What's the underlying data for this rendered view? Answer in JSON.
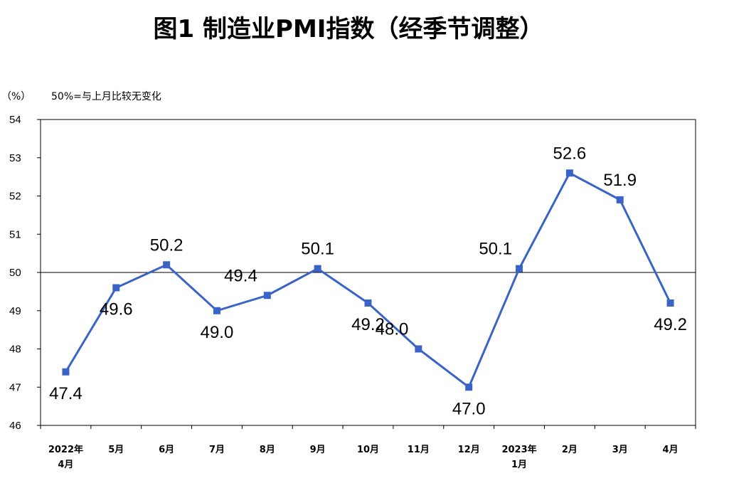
{
  "chart_data": {
    "type": "line",
    "title": "图1  制造业PMI指数（经季节调整）",
    "unit_label": "（%）",
    "note": "50%=与上月比较无变化",
    "categories": [
      [
        "2022年",
        "4月"
      ],
      [
        "5月"
      ],
      [
        "6月"
      ],
      [
        "7月"
      ],
      [
        "8月"
      ],
      [
        "9月"
      ],
      [
        "10月"
      ],
      [
        "11月"
      ],
      [
        "12月"
      ],
      [
        "2023年",
        "1月"
      ],
      [
        "2月"
      ],
      [
        "3月"
      ],
      [
        "4月"
      ]
    ],
    "values": [
      47.4,
      49.6,
      50.2,
      49.0,
      49.4,
      50.1,
      49.2,
      48.0,
      47.0,
      50.1,
      52.6,
      51.9,
      49.2
    ],
    "data_labels": [
      "47.4",
      "49.6",
      "50.2",
      "49.0",
      "49.4",
      "50.1",
      "49.2",
      "48.0",
      "47.0",
      "50.1",
      "52.6",
      "51.9",
      "49.2"
    ],
    "label_positions": [
      "below",
      "below",
      "above",
      "below",
      "left",
      "above",
      "below",
      "left",
      "below",
      "above-left",
      "above",
      "above",
      "below"
    ],
    "yticks": [
      "46",
      "47",
      "48",
      "49",
      "50",
      "51",
      "52",
      "53",
      "54"
    ],
    "ylim": [
      46,
      54
    ],
    "reference_line": 50,
    "grid": false,
    "colors": {
      "line": "#3a63c8",
      "marker": "#3a63c8",
      "axis": "#000000",
      "reference": "#000000"
    }
  }
}
